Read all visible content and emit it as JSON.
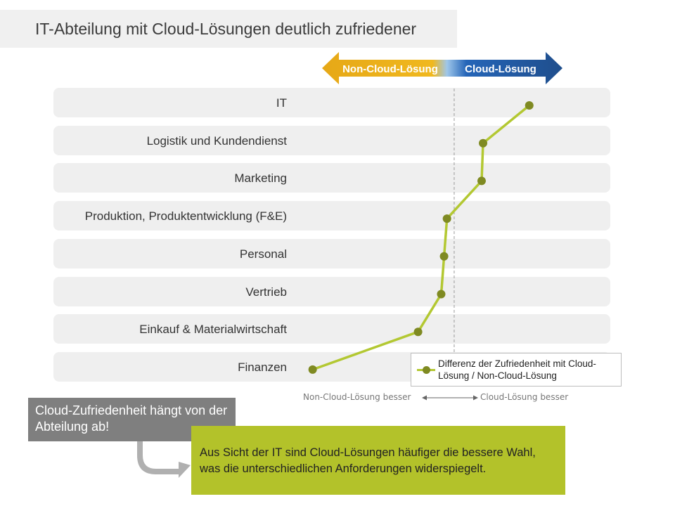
{
  "title": "IT-Abteilung mit Cloud-Lösungen deutlich zufriedener",
  "arrows": {
    "left_label": "Non-Cloud-Lösung",
    "right_label": "Cloud-Lösung",
    "left_color": "#e6a817",
    "right_color": "#1f4e8c"
  },
  "chart_data": {
    "type": "line",
    "categories": [
      "IT",
      "Logistik und Kundendienst",
      "Marketing",
      "Produktion, Produktentwicklung (F&E)",
      "Personal",
      "Vertrieb",
      "Einkauf & Materialwirtschaft",
      "Finanzen"
    ],
    "series": [
      {
        "name": "Differenz der Zufriedenheit mit Cloud-Lösung / Non-Cloud-Lösung",
        "values": [
          0.52,
          0.2,
          0.19,
          -0.05,
          -0.07,
          -0.09,
          -0.25,
          -0.98
        ]
      }
    ],
    "xlim": [
      -1.1,
      0.75
    ],
    "x_axis_note_left": "Non-Cloud-Lösung besser",
    "x_axis_note_right": "Cloud-Lösung besser",
    "reference_line": 0,
    "grid": false,
    "legend_position": "bottom-right",
    "line_color": "#b3c832",
    "marker_color": "#7f8a22"
  },
  "legend": {
    "text": "Differenz der Zufriedenheit mit Cloud-Lösung / Non-Cloud-Lösung"
  },
  "callouts": {
    "gray": "Cloud-Zufriedenheit  hängt von der Abteilung  ab!",
    "green": "Aus Sicht der IT sind Cloud-Lösungen häufiger die bessere Wahl, was die unterschiedlichen Anforderungen widerspiegelt."
  }
}
